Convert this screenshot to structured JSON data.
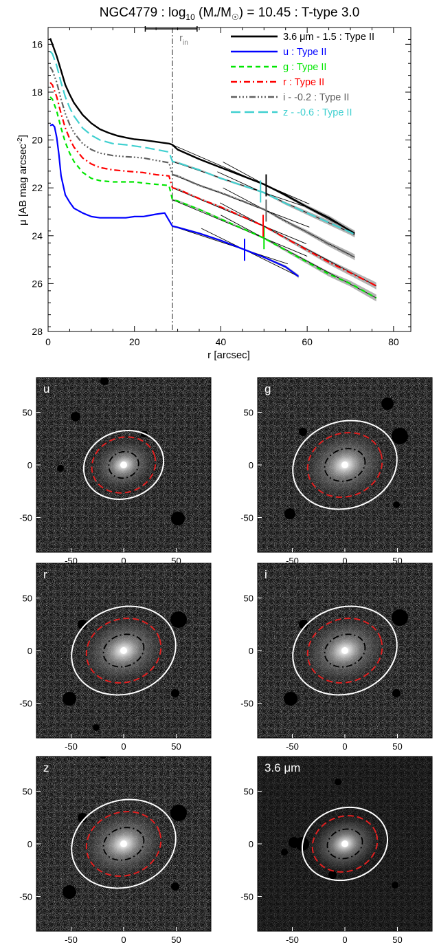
{
  "chart_data": [
    {
      "type": "line",
      "title": "NGC4779 : log",
      "title_sub": "10",
      "title_mid": " (M",
      "title_star": "*",
      "title_mid2": "/M",
      "title_sun": "☉",
      "title_end": ") = 10.45 : T-type 3.0",
      "xlabel": "r [arcsec]",
      "ylabel": "μ [AB mag arcsec",
      "ylabel_sup": "-2",
      "ylabel_end": "]",
      "xlim": [
        0,
        84
      ],
      "ylim": [
        28,
        15.3
      ],
      "y_inverted": true,
      "xticks": [
        0,
        20,
        40,
        60,
        80
      ],
      "yticks": [
        16,
        18,
        20,
        22,
        24,
        26,
        28
      ],
      "legend_placement": "top-right",
      "annotation": {
        "label": "r",
        "label_sub": "in",
        "x": 28.8,
        "bar_range": [
          22.5,
          34.5
        ]
      },
      "series": [
        {
          "name": "3.6 μm - 1.5 : Type II",
          "color": "#000000",
          "dash": "",
          "width": 2.4,
          "x": [
            0.5,
            1,
            2,
            3,
            4,
            5,
            6,
            8,
            10,
            12,
            14,
            16,
            18,
            20,
            22,
            24,
            26,
            28,
            28.8,
            30,
            35,
            40,
            45,
            50,
            55,
            60,
            65,
            70,
            71
          ],
          "y": [
            15.75,
            16.0,
            16.5,
            17.1,
            17.7,
            18.1,
            18.45,
            18.95,
            19.3,
            19.55,
            19.7,
            19.82,
            19.9,
            19.97,
            20.0,
            20.05,
            20.1,
            20.15,
            20.2,
            20.4,
            20.8,
            21.15,
            21.5,
            21.85,
            22.3,
            22.8,
            23.25,
            23.8,
            23.9
          ],
          "break_r": 50.5
        },
        {
          "name": "u : Type II",
          "color": "#0000ff",
          "dash": "",
          "width": 2.2,
          "x": [
            0.5,
            1,
            1.5,
            2,
            2.5,
            3,
            4,
            5,
            6,
            8,
            10,
            12,
            15,
            18,
            20,
            22,
            25,
            27,
            28.8,
            30,
            35,
            40,
            45,
            50,
            55,
            58
          ],
          "y": [
            19.4,
            19.35,
            19.45,
            19.9,
            20.6,
            21.5,
            22.3,
            22.6,
            22.85,
            23.05,
            23.2,
            23.25,
            23.25,
            23.25,
            23.2,
            23.2,
            23.1,
            23.05,
            23.6,
            23.65,
            23.9,
            24.2,
            24.55,
            24.9,
            25.3,
            25.7
          ],
          "break_r": 45.5
        },
        {
          "name": "g : Type II",
          "color": "#00e600",
          "dash": "7,5",
          "width": 2.2,
          "x": [
            0.5,
            1,
            2,
            3,
            4,
            5,
            6,
            8,
            10,
            12,
            15,
            18,
            20,
            22,
            25,
            28,
            28.8,
            30,
            35,
            40,
            45,
            50,
            55,
            60,
            65,
            70,
            75,
            76
          ],
          "y": [
            18.2,
            18.3,
            18.8,
            19.5,
            20.1,
            20.55,
            20.9,
            21.35,
            21.6,
            21.7,
            21.75,
            21.75,
            21.75,
            21.8,
            21.85,
            21.9,
            22.5,
            22.55,
            22.9,
            23.3,
            23.7,
            24.1,
            24.6,
            25.1,
            25.6,
            26.0,
            26.5,
            26.6
          ],
          "break_r": 50.0
        },
        {
          "name": "r : Type II",
          "color": "#ff0000",
          "dash": "9,4,2,4",
          "width": 2.2,
          "x": [
            0.5,
            1,
            2,
            3,
            4,
            5,
            6,
            8,
            10,
            12,
            15,
            18,
            20,
            22,
            25,
            28,
            28.8,
            30,
            35,
            40,
            45,
            50,
            55,
            60,
            65,
            70,
            75,
            76
          ],
          "y": [
            17.6,
            17.7,
            18.2,
            18.9,
            19.5,
            19.95,
            20.3,
            20.75,
            21.0,
            21.15,
            21.25,
            21.3,
            21.33,
            21.36,
            21.45,
            21.5,
            22.0,
            22.05,
            22.45,
            22.8,
            23.2,
            23.6,
            24.1,
            24.6,
            25.1,
            25.55,
            26.0,
            26.1
          ],
          "break_r": 49.8
        },
        {
          "name": "i - -0.2 : Type II",
          "color": "#606060",
          "dash": "9,3,2,3,2,3,2,3",
          "width": 2.2,
          "x": [
            0.5,
            1,
            2,
            3,
            4,
            5,
            6,
            8,
            10,
            12,
            15,
            18,
            20,
            22,
            25,
            28,
            28.8,
            30,
            35,
            40,
            45,
            50,
            55,
            60,
            65,
            70,
            71
          ],
          "y": [
            16.95,
            17.1,
            17.6,
            18.3,
            18.9,
            19.35,
            19.7,
            20.15,
            20.4,
            20.55,
            20.65,
            20.7,
            20.72,
            20.75,
            20.85,
            20.95,
            21.45,
            21.5,
            21.9,
            22.2,
            22.55,
            22.9,
            23.4,
            23.85,
            24.35,
            24.8,
            24.9
          ],
          "break_r": 50.5
        },
        {
          "name": "z - -0.6 : Type II",
          "color": "#40d0d0",
          "dash": "14,6",
          "width": 2.2,
          "x": [
            0.5,
            1,
            2,
            3,
            4,
            5,
            6,
            8,
            10,
            12,
            15,
            18,
            20,
            22,
            25,
            28,
            28.8,
            30,
            35,
            40,
            45,
            50,
            55,
            60,
            65,
            70,
            71
          ],
          "y": [
            16.3,
            16.4,
            16.9,
            17.6,
            18.2,
            18.65,
            19.0,
            19.5,
            19.8,
            20.0,
            20.15,
            20.2,
            20.25,
            20.3,
            20.4,
            20.5,
            20.9,
            20.95,
            21.25,
            21.6,
            21.9,
            22.2,
            22.65,
            23.05,
            23.45,
            23.85,
            23.95
          ],
          "break_r": 49.2
        }
      ]
    },
    {
      "type": "image-grid",
      "axis_ticks_x": [
        "-50",
        "0",
        "50"
      ],
      "axis_ticks_y": [
        "50",
        "0",
        "-50"
      ],
      "panels": [
        {
          "label": "u",
          "outer": {
            "rx": 59,
            "ry": 49
          },
          "dashed_red": {
            "rx": 47,
            "ry": 40
          },
          "dashdot": {
            "rx": 22,
            "ry": 19
          }
        },
        {
          "label": "g",
          "outer": {
            "rx": 77,
            "ry": 63
          },
          "dashed_red": {
            "rx": 55,
            "ry": 46
          },
          "dashdot": {
            "rx": 30,
            "ry": 23
          }
        },
        {
          "label": "r",
          "outer": {
            "rx": 77,
            "ry": 63
          },
          "dashed_red": {
            "rx": 55,
            "ry": 46
          },
          "dashdot": {
            "rx": 30,
            "ry": 23
          }
        },
        {
          "label": "i",
          "outer": {
            "rx": 77,
            "ry": 63
          },
          "dashed_red": {
            "rx": 55,
            "ry": 46
          },
          "dashdot": {
            "rx": 30,
            "ry": 23
          }
        },
        {
          "label": "z",
          "outer": {
            "rx": 77,
            "ry": 63
          },
          "dashed_red": {
            "rx": 55,
            "ry": 46
          },
          "dashdot": {
            "rx": 30,
            "ry": 23
          }
        },
        {
          "label": "3.6 μm",
          "outer": {
            "rx": 63,
            "ry": 52
          },
          "dashed_red": {
            "rx": 48,
            "ry": 40
          },
          "dashdot": {
            "rx": 26,
            "ry": 21
          }
        }
      ]
    }
  ]
}
